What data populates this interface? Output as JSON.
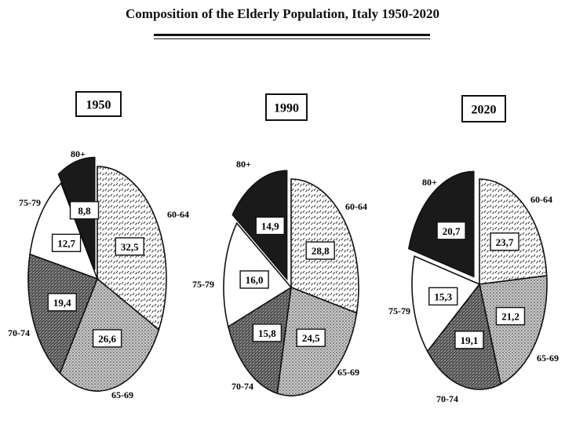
{
  "page": {
    "title": "Composition of the Elderly Population, Italy 1950-2020"
  },
  "chart_data": [
    {
      "type": "pie",
      "title": "1950",
      "categories": [
        "60-64",
        "65-69",
        "70-74",
        "75-79",
        "80+"
      ],
      "values": [
        32.5,
        26.6,
        19.4,
        12.7,
        8.8
      ],
      "value_labels": [
        "32,5",
        "26,6",
        "19,4",
        "12,7",
        "8,8"
      ],
      "exploded": "80+"
    },
    {
      "type": "pie",
      "title": "1990",
      "categories": [
        "60-64",
        "65-69",
        "70-74",
        "75-79",
        "80+"
      ],
      "values": [
        28.8,
        24.5,
        15.8,
        16.0,
        14.9
      ],
      "value_labels": [
        "28,8",
        "24,5",
        "15,8",
        "16,0",
        "14,9"
      ],
      "exploded": "80+"
    },
    {
      "type": "pie",
      "title": "2020",
      "categories": [
        "60-64",
        "65-69",
        "70-74",
        "75-79",
        "80+"
      ],
      "values": [
        23.7,
        21.2,
        19.1,
        15.3,
        20.7
      ],
      "value_labels": [
        "23,7",
        "21,2",
        "19,1",
        "15,3",
        "20,7"
      ],
      "exploded": "80+"
    }
  ],
  "fills": {
    "60-64": "pattern-dashes",
    "65-69": "pattern-stipple",
    "70-74": "pattern-dense-hatch",
    "75-79": "#ffffff",
    "80+": "#1a1a1a"
  }
}
